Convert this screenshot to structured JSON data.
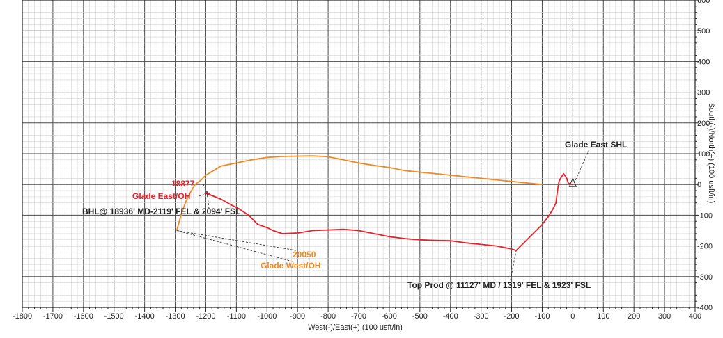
{
  "chart_data": {
    "type": "line",
    "title": "",
    "xlabel": "West(-)/East(+) (100 usft/in)",
    "ylabel": "South(-)/North(+) (100 usft/in)",
    "xlim": [
      -1800,
      400
    ],
    "ylim": [
      -400,
      600
    ],
    "x_ticks": [
      -1800,
      -1700,
      -1600,
      -1500,
      -1400,
      -1300,
      -1200,
      -1100,
      -1000,
      -900,
      -800,
      -700,
      -600,
      -500,
      -400,
      -300,
      -200,
      -100,
      0,
      100,
      200,
      300,
      400
    ],
    "y_ticks": [
      -400,
      -300,
      -200,
      -100,
      0,
      100,
      200,
      300,
      400,
      500,
      600
    ],
    "grid": true,
    "series": [
      {
        "name": "Glade East/OH",
        "color": "#e8212a",
        "points": [
          [
            0,
            0
          ],
          [
            -5,
            0
          ],
          [
            -15,
            5
          ],
          [
            -20,
            20
          ],
          [
            -30,
            35
          ],
          [
            -40,
            20
          ],
          [
            -45,
            10
          ],
          [
            -50,
            -20
          ],
          [
            -55,
            -60
          ],
          [
            -65,
            -80
          ],
          [
            -80,
            -105
          ],
          [
            -100,
            -130
          ],
          [
            -125,
            -155
          ],
          [
            -150,
            -180
          ],
          [
            -175,
            -205
          ],
          [
            -185,
            -215
          ],
          [
            -200,
            -210
          ],
          [
            -250,
            -200
          ],
          [
            -300,
            -195
          ],
          [
            -350,
            -190
          ],
          [
            -400,
            -183
          ],
          [
            -450,
            -182
          ],
          [
            -500,
            -180
          ],
          [
            -550,
            -176
          ],
          [
            -600,
            -170
          ],
          [
            -650,
            -160
          ],
          [
            -700,
            -150
          ],
          [
            -750,
            -146
          ],
          [
            -800,
            -148
          ],
          [
            -850,
            -150
          ],
          [
            -900,
            -158
          ],
          [
            -950,
            -160
          ],
          [
            -980,
            -150
          ],
          [
            -1000,
            -140
          ],
          [
            -1030,
            -130
          ],
          [
            -1060,
            -100
          ],
          [
            -1090,
            -80
          ],
          [
            -1120,
            -65
          ],
          [
            -1150,
            -48
          ],
          [
            -1175,
            -38
          ],
          [
            -1195,
            -30
          ]
        ]
      },
      {
        "name": "Glade West/OH",
        "color": "#f08a24",
        "points": [
          [
            -100,
            0
          ],
          [
            -150,
            5
          ],
          [
            -200,
            10
          ],
          [
            -250,
            15
          ],
          [
            -300,
            20
          ],
          [
            -350,
            25
          ],
          [
            -400,
            30
          ],
          [
            -450,
            35
          ],
          [
            -500,
            40
          ],
          [
            -550,
            45
          ],
          [
            -600,
            55
          ],
          [
            -650,
            62
          ],
          [
            -700,
            70
          ],
          [
            -750,
            80
          ],
          [
            -800,
            90
          ],
          [
            -850,
            93
          ],
          [
            -900,
            92
          ],
          [
            -950,
            91
          ],
          [
            -1000,
            88
          ],
          [
            -1050,
            80
          ],
          [
            -1100,
            70
          ],
          [
            -1150,
            60
          ],
          [
            -1175,
            45
          ],
          [
            -1200,
            30
          ],
          [
            -1215,
            15
          ],
          [
            -1235,
            0
          ],
          [
            -1250,
            -25
          ],
          [
            -1265,
            -55
          ],
          [
            -1278,
            -90
          ],
          [
            -1288,
            -125
          ],
          [
            -1295,
            -150
          ]
        ]
      }
    ],
    "annotations": [
      {
        "text": "Glade East SHL",
        "color": "#222222"
      },
      {
        "text": "18877",
        "color": "#e8212a"
      },
      {
        "text": "Glade East/OH",
        "color": "#e8212a"
      },
      {
        "text": "BHL@ 18936' MD-2119' FEL & 2094' FSL",
        "color": "#222222"
      },
      {
        "text": "20050",
        "color": "#f08a24"
      },
      {
        "text": "Glade West/OH",
        "color": "#f08a24"
      },
      {
        "text": "Top Prod @ 11127' MD / 1319' FEL & 1923' FSL",
        "color": "#222222"
      }
    ]
  }
}
